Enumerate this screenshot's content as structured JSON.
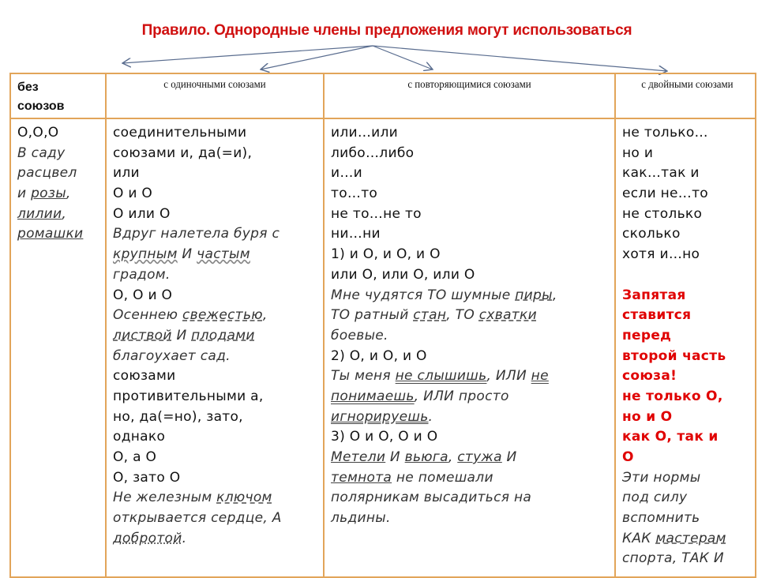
{
  "title": "Правило. Однородные члены предложения могут  использоваться",
  "colors": {
    "title": "#d01010",
    "border": "#e2a55a",
    "rule": "#e00000"
  },
  "headers": [
    "без союзов",
    "с одиночными союзами",
    "с повторяющимися союзами",
    "с двойными союзами"
  ],
  "columns": [
    [
      {
        "s": "n",
        "t": [
          {
            "t": "О,О,О"
          }
        ]
      },
      {
        "s": "i",
        "t": [
          {
            "t": "В саду"
          }
        ]
      },
      {
        "s": "i",
        "t": [
          {
            "t": "расцвел"
          }
        ]
      },
      {
        "s": "i",
        "t": [
          {
            "t": "и "
          },
          {
            "t": "розы",
            "u": "s"
          },
          {
            "t": ","
          }
        ]
      },
      {
        "s": "i",
        "t": [
          {
            "t": "лилии",
            "u": "s"
          },
          {
            "t": ","
          }
        ]
      },
      {
        "s": "i",
        "t": [
          {
            "t": "ромашки",
            "u": "s"
          }
        ]
      }
    ],
    [
      {
        "s": "n",
        "t": [
          {
            "t": "соединительными"
          }
        ]
      },
      {
        "s": "n",
        "t": [
          {
            "t": "союзами и, да(=и),"
          }
        ]
      },
      {
        "s": "n",
        "t": [
          {
            "t": "или"
          }
        ]
      },
      {
        "s": "n",
        "t": [
          {
            "t": "О и О"
          }
        ]
      },
      {
        "s": "n",
        "t": [
          {
            "t": "О или О"
          }
        ]
      },
      {
        "s": "i",
        "t": [
          {
            "t": "Вдруг налетела буря с"
          }
        ]
      },
      {
        "s": "i",
        "t": [
          {
            "t": "крупным",
            "u": "w"
          },
          {
            "t": " И "
          },
          {
            "t": "частым",
            "u": "w"
          }
        ]
      },
      {
        "s": "i",
        "t": [
          {
            "t": "градом."
          }
        ]
      },
      {
        "s": "n",
        "t": [
          {
            "t": "О, О и О"
          }
        ]
      },
      {
        "s": "i",
        "t": [
          {
            "t": "Осеннею "
          },
          {
            "t": "свежестью",
            "u": "d"
          },
          {
            "t": ","
          }
        ]
      },
      {
        "s": "i",
        "t": [
          {
            "t": "листвой",
            "u": "d"
          },
          {
            "t": " И "
          },
          {
            "t": "плодами",
            "u": "d"
          }
        ]
      },
      {
        "s": "i",
        "t": [
          {
            "t": "благоухает сад."
          }
        ]
      },
      {
        "s": "n",
        "t": [
          {
            "t": "союзами"
          }
        ]
      },
      {
        "s": "n",
        "t": [
          {
            "t": "противительными  а,"
          }
        ]
      },
      {
        "s": "n",
        "t": [
          {
            "t": "но, да(=но), зато,"
          }
        ]
      },
      {
        "s": "n",
        "t": [
          {
            "t": "однако"
          }
        ]
      },
      {
        "s": "n",
        "t": [
          {
            "t": "О, а О"
          }
        ]
      },
      {
        "s": "n",
        "t": [
          {
            "t": "О, зато О"
          }
        ]
      },
      {
        "s": "i",
        "t": [
          {
            "t": "Не железным "
          },
          {
            "t": "ключом",
            "u": "d"
          }
        ]
      },
      {
        "s": "i",
        "t": [
          {
            "t": "открывается сердце, А"
          }
        ]
      },
      {
        "s": "i",
        "t": [
          {
            "t": "добротой",
            "u": "o"
          },
          {
            "t": "."
          }
        ]
      }
    ],
    [
      {
        "s": "n",
        "t": [
          {
            "t": "или…или"
          }
        ]
      },
      {
        "s": "n",
        "t": [
          {
            "t": "либо…либо"
          }
        ]
      },
      {
        "s": "n",
        "t": [
          {
            "t": "и…и"
          }
        ]
      },
      {
        "s": "n",
        "t": [
          {
            "t": "то…то"
          }
        ]
      },
      {
        "s": "n",
        "t": [
          {
            "t": "не то…не то"
          }
        ]
      },
      {
        "s": "n",
        "t": [
          {
            "t": "ни…ни"
          }
        ]
      },
      {
        "s": "n",
        "t": [
          {
            "t": "1) и О, и О, и О"
          }
        ]
      },
      {
        "s": "n",
        "t": [
          {
            "t": "или О, или О, или О"
          }
        ]
      },
      {
        "s": "i",
        "t": [
          {
            "t": "Мне чудятся ТО шумные "
          },
          {
            "t": "пиры",
            "u": "d"
          },
          {
            "t": ","
          }
        ]
      },
      {
        "s": "i",
        "t": [
          {
            "t": "ТО ратный "
          },
          {
            "t": "стан",
            "u": "d"
          },
          {
            "t": ", ТО "
          },
          {
            "t": "схватки",
            "u": "d"
          }
        ]
      },
      {
        "s": "i",
        "t": [
          {
            "t": "боевые."
          }
        ]
      },
      {
        "s": "n",
        "t": [
          {
            "t": "2)  О, и О, и О"
          }
        ]
      },
      {
        "s": "i",
        "t": [
          {
            "t": "Ты меня "
          },
          {
            "t": "не слышишь",
            "u": "dd"
          },
          {
            "t": ", ИЛИ "
          },
          {
            "t": "не",
            "u": "dd"
          }
        ]
      },
      {
        "s": "i",
        "t": [
          {
            "t": "понимаешь",
            "u": "dd"
          },
          {
            "t": ", ИЛИ просто"
          }
        ]
      },
      {
        "s": "i",
        "t": [
          {
            "t": "игнорируешь",
            "u": "dd"
          },
          {
            "t": "."
          }
        ]
      },
      {
        "s": "n",
        "t": [
          {
            "t": "3)  О и О, О и О"
          }
        ]
      },
      {
        "s": "i",
        "t": [
          {
            "t": "Метели",
            "u": "s"
          },
          {
            "t": " И "
          },
          {
            "t": "вьюга",
            "u": "s"
          },
          {
            "t": ", "
          },
          {
            "t": "стужа",
            "u": "s"
          },
          {
            "t": " И"
          }
        ]
      },
      {
        "s": "i",
        "t": [
          {
            "t": "темнота",
            "u": "s"
          },
          {
            "t": " не помешали"
          }
        ]
      },
      {
        "s": "i",
        "t": [
          {
            "t": "полярникам высадиться на"
          }
        ]
      },
      {
        "s": "i",
        "t": [
          {
            "t": "льдины."
          }
        ]
      }
    ],
    [
      {
        "s": "n",
        "t": [
          {
            "t": "не только…"
          }
        ]
      },
      {
        "s": "n",
        "t": [
          {
            "t": "но и"
          }
        ]
      },
      {
        "s": "n",
        "t": [
          {
            "t": "как…так и"
          }
        ]
      },
      {
        "s": "n",
        "t": [
          {
            "t": "если не…то"
          }
        ]
      },
      {
        "s": "n",
        "t": [
          {
            "t": "не столько"
          }
        ]
      },
      {
        "s": "n",
        "t": [
          {
            "t": "сколько"
          }
        ]
      },
      {
        "s": "n",
        "t": [
          {
            "t": "хотя и…но"
          }
        ]
      },
      {
        "s": "n",
        "t": [
          {
            "t": ""
          }
        ]
      },
      {
        "s": "b",
        "t": [
          {
            "t": "Запятая"
          }
        ]
      },
      {
        "s": "b",
        "t": [
          {
            "t": "ставится"
          }
        ]
      },
      {
        "s": "b",
        "t": [
          {
            "t": "перед"
          }
        ]
      },
      {
        "s": "b",
        "t": [
          {
            "t": "второй часть"
          }
        ]
      },
      {
        "s": "b",
        "t": [
          {
            "t": "союза!"
          }
        ]
      },
      {
        "s": "b",
        "t": [
          {
            "t": "не только О,"
          }
        ]
      },
      {
        "s": "b",
        "t": [
          {
            "t": "но и О"
          }
        ]
      },
      {
        "s": "b",
        "t": [
          {
            "t": "как О, так и"
          }
        ]
      },
      {
        "s": "b",
        "t": [
          {
            "t": "О"
          }
        ]
      },
      {
        "s": "i",
        "t": [
          {
            "t": "Эти нормы"
          }
        ]
      },
      {
        "s": "i",
        "t": [
          {
            "t": "под силу"
          }
        ]
      },
      {
        "s": "i",
        "t": [
          {
            "t": "вспомнить"
          }
        ]
      },
      {
        "s": "i",
        "t": [
          {
            "t": "КАК "
          },
          {
            "t": "мастерам",
            "u": "d"
          }
        ]
      },
      {
        "s": "i",
        "t": [
          {
            "t": "спорта, ТАК И"
          }
        ]
      }
    ]
  ]
}
